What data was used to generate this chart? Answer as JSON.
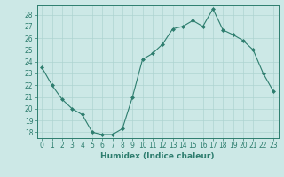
{
  "x": [
    0,
    1,
    2,
    3,
    4,
    5,
    6,
    7,
    8,
    9,
    10,
    11,
    12,
    13,
    14,
    15,
    16,
    17,
    18,
    19,
    20,
    21,
    22,
    23
  ],
  "y": [
    23.5,
    22.0,
    20.8,
    20.0,
    19.5,
    18.0,
    17.8,
    17.8,
    18.3,
    21.0,
    24.2,
    24.7,
    25.5,
    26.8,
    27.0,
    27.5,
    27.0,
    28.5,
    26.7,
    26.3,
    25.8,
    25.0,
    23.0,
    21.5
  ],
  "line_color": "#2d7d6e",
  "marker": "D",
  "marker_size": 2,
  "bg_color": "#cce8e6",
  "grid_color": "#aed4d1",
  "axes_color": "#2d7d6e",
  "xlabel": "Humidex (Indice chaleur)",
  "xlim": [
    -0.5,
    23.5
  ],
  "ylim": [
    17.5,
    28.8
  ],
  "yticks": [
    18,
    19,
    20,
    21,
    22,
    23,
    24,
    25,
    26,
    27,
    28
  ],
  "xticks": [
    0,
    1,
    2,
    3,
    4,
    5,
    6,
    7,
    8,
    9,
    10,
    11,
    12,
    13,
    14,
    15,
    16,
    17,
    18,
    19,
    20,
    21,
    22,
    23
  ],
  "tick_fontsize": 5.5,
  "label_fontsize": 6.5
}
